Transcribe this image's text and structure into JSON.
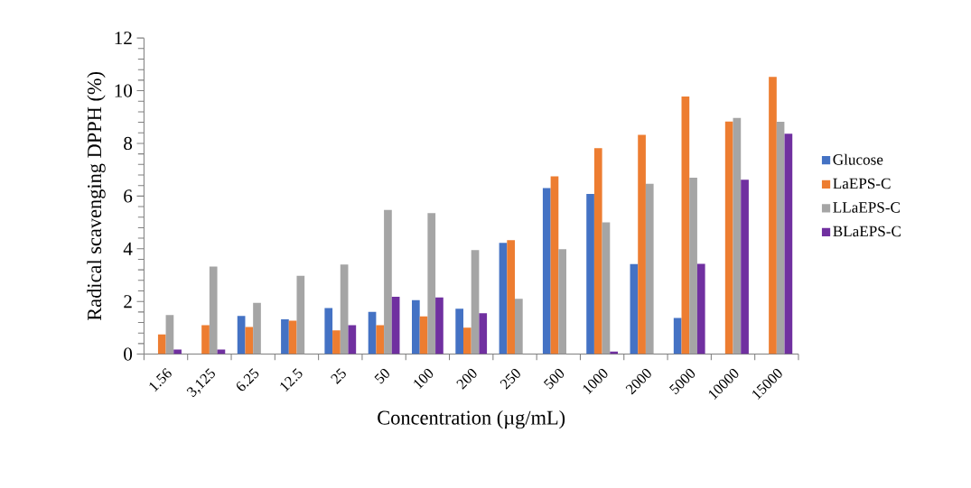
{
  "chart_data": {
    "type": "bar",
    "xlabel": "Concentration (µg/mL)",
    "ylabel": "Radical scavenging DPPH (%)",
    "categories": [
      "1.56",
      "3,125",
      "6.25",
      "12.5",
      "25",
      "50",
      "100",
      "200",
      "250",
      "500",
      "1000",
      "2000",
      "5000",
      "10000",
      "15000"
    ],
    "series": [
      {
        "name": "Glucose",
        "color": "#4472c4",
        "values": [
          0,
          0,
          1.45,
          1.32,
          1.75,
          1.6,
          2.05,
          1.72,
          4.22,
          6.3,
          6.08,
          3.42,
          1.37,
          0,
          0
        ]
      },
      {
        "name": "LaEPS-C",
        "color": "#ed7d31",
        "values": [
          0.75,
          1.1,
          1.03,
          1.27,
          0.9,
          1.1,
          1.43,
          1.0,
          4.33,
          6.75,
          7.82,
          8.32,
          9.78,
          8.83,
          10.52
        ]
      },
      {
        "name": "LLaEPS-C",
        "color": "#a5a5a5",
        "values": [
          1.48,
          3.32,
          1.95,
          2.97,
          3.4,
          5.47,
          5.35,
          3.95,
          2.1,
          3.98,
          5.0,
          6.47,
          6.7,
          8.97,
          8.82
        ]
      },
      {
        "name": "BLaEPS-C",
        "color": "#7030a0",
        "values": [
          0.17,
          0.17,
          0,
          0,
          1.1,
          2.18,
          2.15,
          1.55,
          0,
          0,
          0.1,
          0,
          3.43,
          6.62,
          8.37
        ]
      }
    ],
    "ylim": [
      0,
      12
    ],
    "yticks": [
      0,
      2,
      4,
      6,
      8,
      10,
      12
    ],
    "grid": false,
    "legend": "right"
  }
}
